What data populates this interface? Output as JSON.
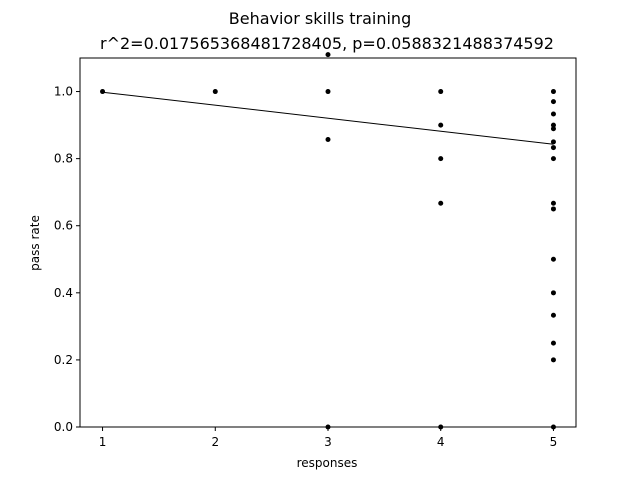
{
  "chart_data": {
    "type": "scatter",
    "title": "Behavior skills training",
    "subtitle": "r^2=0.017565368481728405, p=0.0588321488374592",
    "xlabel": "responses",
    "ylabel": "pass rate",
    "xlim": [
      0.8,
      5.2
    ],
    "ylim": [
      0.0,
      1.1
    ],
    "xticks": [
      "1",
      "2",
      "3",
      "4",
      "5"
    ],
    "yticks": [
      "0.0",
      "0.2",
      "0.4",
      "0.6",
      "0.8",
      "1.0"
    ],
    "grid": false,
    "point_color": "#000000",
    "line_color": "#000000",
    "series": [
      {
        "type": "scatter",
        "points": [
          [
            1,
            1.0
          ],
          [
            2,
            1.0
          ],
          [
            3,
            1.11
          ],
          [
            3,
            1.0
          ],
          [
            3,
            0.857
          ],
          [
            3,
            0.0
          ],
          [
            4,
            1.0
          ],
          [
            4,
            0.9
          ],
          [
            4,
            0.8
          ],
          [
            4,
            0.667
          ],
          [
            4,
            0.0
          ],
          [
            5,
            1.0
          ],
          [
            5,
            0.97
          ],
          [
            5,
            0.933
          ],
          [
            5,
            0.9
          ],
          [
            5,
            0.889
          ],
          [
            5,
            0.85
          ],
          [
            5,
            0.833
          ],
          [
            5,
            0.8
          ],
          [
            5,
            0.667
          ],
          [
            5,
            0.65
          ],
          [
            5,
            0.5
          ],
          [
            5,
            0.4
          ],
          [
            5,
            0.333
          ],
          [
            5,
            0.25
          ],
          [
            5,
            0.2
          ],
          [
            5,
            0.0
          ]
        ]
      },
      {
        "type": "line",
        "points": [
          [
            1,
            0.998
          ],
          [
            5,
            0.843
          ]
        ]
      }
    ]
  }
}
